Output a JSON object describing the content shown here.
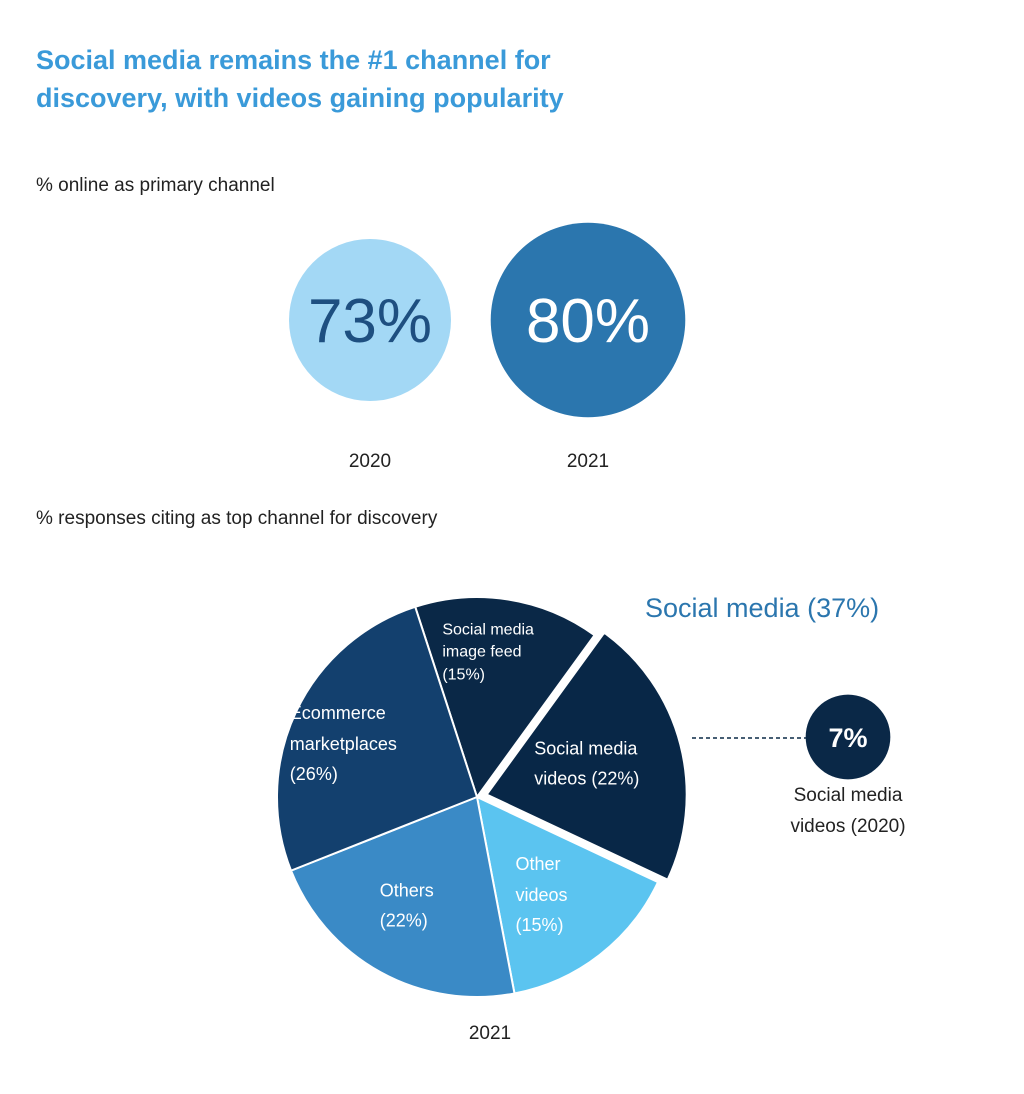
{
  "chart_data": [
    {
      "type": "bubble",
      "title": "Social media remains the #1 channel for discovery, with videos gaining popularity",
      "subtitle": "% online as primary channel",
      "categories": [
        "2020",
        "2021"
      ],
      "values": [
        73,
        80
      ],
      "value_labels": [
        "73%",
        "80%"
      ],
      "colors": [
        "#a3d8f5",
        "#2b76ae"
      ],
      "text_colors": [
        "#1e4f80",
        "#ffffff"
      ]
    },
    {
      "type": "pie",
      "subtitle": "% responses citing as top channel for discovery",
      "label": "2021",
      "categories": [
        "Social media image feed",
        "Social media videos",
        "Other videos",
        "Others",
        "Ecommerce marketplaces"
      ],
      "values": [
        15,
        22,
        15,
        22,
        26
      ],
      "value_labels": [
        "(15%)",
        "(22%)",
        "(15%)",
        "(22%)",
        "(26%)"
      ],
      "colors": [
        "#0a2847",
        "#082747",
        "#5bc4f0",
        "#3a8ac6",
        "#13406e"
      ],
      "highlight": "Social media videos",
      "annotation": "Social media (37%)",
      "comparison": {
        "value": 7,
        "value_label": "7%",
        "label": "Social media videos (2020)",
        "color": "#0a2847"
      }
    }
  ]
}
